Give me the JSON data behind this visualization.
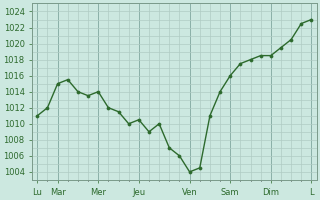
{
  "x_values": [
    0,
    1,
    2,
    3,
    4,
    5,
    6,
    7,
    8,
    9,
    10,
    11,
    12,
    13,
    14,
    15,
    16,
    17,
    18,
    19,
    20,
    21,
    22,
    23,
    24,
    25,
    26,
    27
  ],
  "y_values": [
    1011,
    1012,
    1015,
    1015.5,
    1014,
    1013.5,
    1014,
    1012,
    1011.5,
    1010,
    1010.5,
    1009,
    1010,
    1007,
    1006,
    1004,
    1004.5,
    1011,
    1014,
    1016,
    1017.5,
    1018,
    1018.5,
    1018.5,
    1019.5,
    1020.5,
    1022.5,
    1023
  ],
  "xlim": [
    -0.5,
    27.5
  ],
  "ylim": [
    1003,
    1025
  ],
  "day_tick_positions": [
    0,
    2,
    6,
    10,
    15,
    19,
    23,
    27
  ],
  "day_labels": [
    "Lu",
    "Mar",
    "Mer",
    "Jeu",
    "Ven",
    "Sam",
    "Dim",
    "L"
  ],
  "minor_x_step": 1,
  "major_x_step": 4,
  "ytick_major": 2,
  "ytick_minor": 1,
  "line_color": "#2d6a2d",
  "marker_color": "#2d6a2d",
  "bg_color": "#cce8e0",
  "grid_color": "#b0ccc4",
  "fig_bg": "#cce8e0"
}
